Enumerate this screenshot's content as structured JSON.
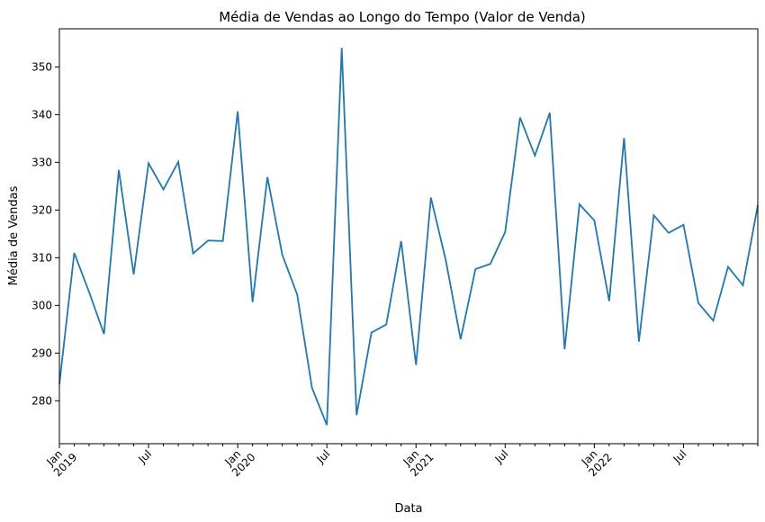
{
  "chart_data": {
    "type": "line",
    "title": "Média de Vendas ao Longo do Tempo (Valor de Venda)",
    "xlabel": "Data",
    "ylabel": "Média de Vendas",
    "ylim": [
      271,
      358
    ],
    "xlim": [
      "2019-01",
      "2022-12"
    ],
    "grid": false,
    "legend": "none",
    "line_color": "#1f77b4",
    "yticks": [
      280,
      290,
      300,
      310,
      320,
      330,
      340,
      350
    ],
    "xticks": [
      {
        "x": "2019-01",
        "label": "Jan",
        "label2": "2019"
      },
      {
        "x": "2019-07",
        "label": "Jul",
        "label2": ""
      },
      {
        "x": "2020-01",
        "label": "Jan",
        "label2": "2020"
      },
      {
        "x": "2020-07",
        "label": "Jul",
        "label2": ""
      },
      {
        "x": "2021-01",
        "label": "Jan",
        "label2": "2021"
      },
      {
        "x": "2021-07",
        "label": "Jul",
        "label2": ""
      },
      {
        "x": "2022-01",
        "label": "Jan",
        "label2": "2022"
      },
      {
        "x": "2022-07",
        "label": "Jul",
        "label2": ""
      }
    ],
    "x": [
      "2019-01",
      "2019-02",
      "2019-03",
      "2019-04",
      "2019-05",
      "2019-06",
      "2019-07",
      "2019-08",
      "2019-09",
      "2019-10",
      "2019-11",
      "2019-12",
      "2020-01",
      "2020-02",
      "2020-03",
      "2020-04",
      "2020-05",
      "2020-06",
      "2020-07",
      "2020-08",
      "2020-09",
      "2020-10",
      "2020-11",
      "2020-12",
      "2021-01",
      "2021-02",
      "2021-03",
      "2021-04",
      "2021-05",
      "2021-06",
      "2021-07",
      "2021-08",
      "2021-09",
      "2021-10",
      "2021-11",
      "2021-12",
      "2022-01",
      "2022-02",
      "2022-03",
      "2022-04",
      "2022-05",
      "2022-06",
      "2022-07",
      "2022-08",
      "2022-09",
      "2022-10",
      "2022-11",
      "2022-12"
    ],
    "values": [
      283.5,
      311.0,
      302.8,
      294.0,
      328.4,
      306.5,
      329.8,
      324.3,
      330.1,
      310.9,
      313.6,
      313.5,
      340.7,
      300.7,
      326.9,
      310.6,
      302.3,
      282.7,
      274.9,
      354.0,
      277.0,
      294.3,
      296.0,
      313.5,
      287.5,
      322.6,
      309.5,
      292.9,
      307.6,
      308.7,
      315.4,
      339.4,
      331.4,
      340.4,
      290.8,
      321.2,
      317.8,
      300.9,
      335.1,
      292.4,
      318.9,
      315.2,
      316.9,
      300.5,
      296.8,
      308.1,
      304.2,
      321.0
    ]
  }
}
